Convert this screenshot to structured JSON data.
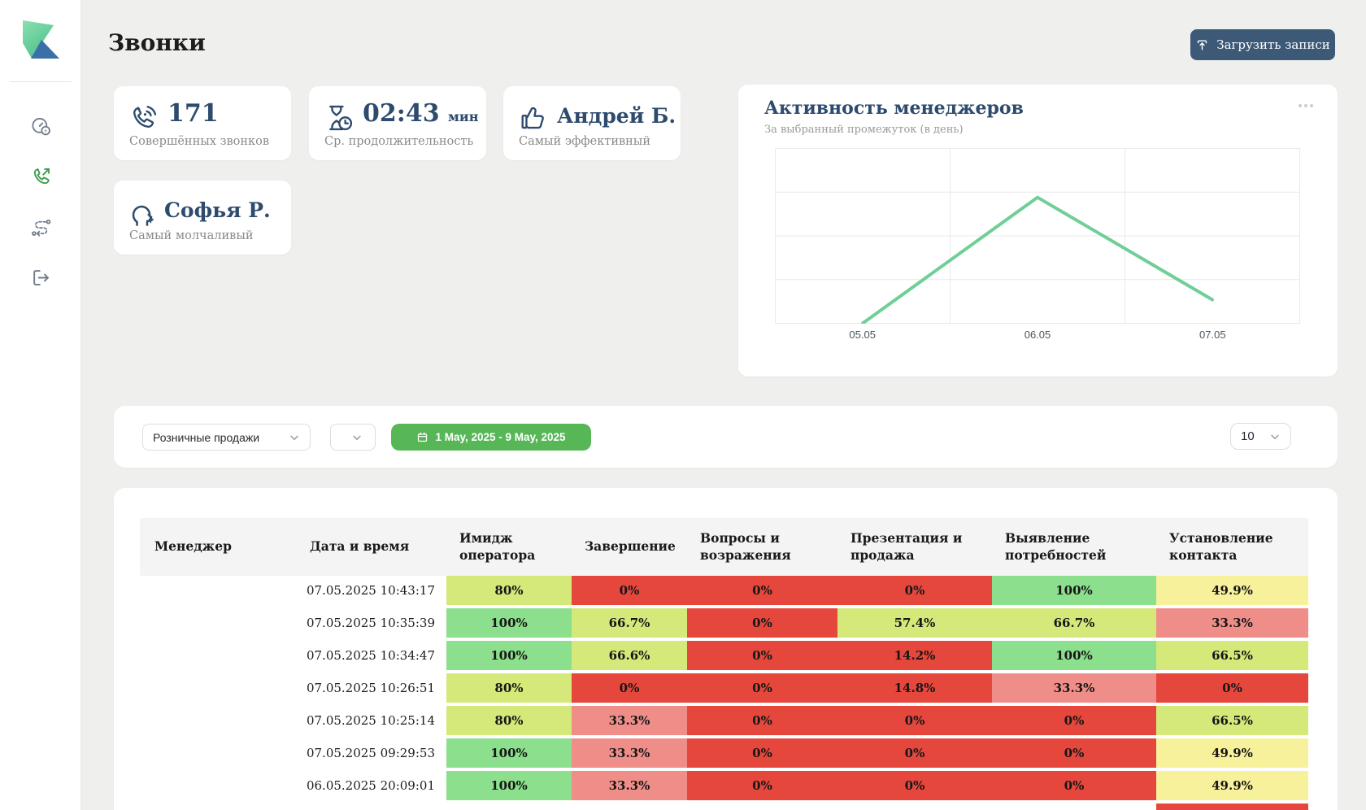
{
  "header": {
    "title": "Звонки",
    "upload_button": "Загрузить записи"
  },
  "sidebar": {
    "logo_icon": "logo",
    "items": [
      {
        "id": "dashboard",
        "icon": "gauge-icon",
        "active": false
      },
      {
        "id": "calls",
        "icon": "phone-outgoing-icon",
        "active": true
      },
      {
        "id": "script-flow",
        "icon": "route-icon",
        "active": false
      },
      {
        "id": "logout",
        "icon": "logout-icon",
        "active": false
      }
    ]
  },
  "stats": [
    {
      "icon": "phone-waves-icon",
      "value": "171",
      "unit": "",
      "label": "Совершённых звонков"
    },
    {
      "icon": "hourglass-clock-icon",
      "value": "02:43",
      "unit": "мин",
      "label": "Ср. продолжительность"
    },
    {
      "icon": "thumbs-up-icon",
      "value": "Андрей Б.",
      "unit": "",
      "label": "Самый эффективный"
    },
    {
      "icon": "talking-head-icon",
      "value": "Софья Р.",
      "unit": "",
      "label": "Самый молчаливый"
    }
  ],
  "activity_panel": {
    "title": "Активность менеджеров",
    "subtitle": "За выбранный промежуток (в день)",
    "menu_icon": "ellipsis-icon"
  },
  "chart_data": {
    "type": "line",
    "title": "Активность менеджеров",
    "categories": [
      "05.05",
      "06.05",
      "07.05"
    ],
    "values": [
      0,
      2.88,
      0.54
    ],
    "ylim": [
      0,
      4
    ],
    "grid": true,
    "legend": false,
    "line_color": "#6FCF97"
  },
  "filters": {
    "department": {
      "value": "Розничные продажи",
      "icon": "chevron-down-icon"
    },
    "secondary": {
      "value": "",
      "icon": "chevron-down-icon"
    },
    "date_range": {
      "label": "1 May, 2025 - 9 May, 2025",
      "icon": "calendar-icon",
      "color": "#57B757"
    },
    "page_size": {
      "value": "10",
      "icon": "chevron-down-icon"
    }
  },
  "table": {
    "columns": [
      "Менеджер",
      "Дата и время",
      "Имидж оператора",
      "Завершение",
      "Вопросы и возражения",
      "Презентация и продажа",
      "Выявление потребностей",
      "Установление контакта"
    ],
    "rows": [
      {
        "manager": "",
        "datetime": "07.05.2025 10:43:17",
        "values": [
          80,
          0,
          0,
          0,
          100,
          49.9
        ]
      },
      {
        "manager": "",
        "datetime": "07.05.2025 10:35:39",
        "values": [
          100,
          66.7,
          0,
          57.4,
          66.7,
          33.3
        ]
      },
      {
        "manager": "",
        "datetime": "07.05.2025 10:34:47",
        "values": [
          100,
          66.6,
          0,
          14.2,
          100,
          66.5
        ]
      },
      {
        "manager": "",
        "datetime": "07.05.2025 10:26:51",
        "values": [
          80,
          0,
          0,
          14.8,
          33.3,
          0
        ]
      },
      {
        "manager": "",
        "datetime": "07.05.2025 10:25:14",
        "values": [
          80,
          33.3,
          0,
          0,
          0,
          66.5
        ]
      },
      {
        "manager": "",
        "datetime": "07.05.2025 09:29:53",
        "values": [
          100,
          33.3,
          0,
          0,
          0,
          49.9
        ]
      },
      {
        "manager": "",
        "datetime": "06.05.2025 20:09:01",
        "values": [
          100,
          33.3,
          0,
          0,
          0,
          49.9
        ]
      }
    ],
    "partial_row": {
      "visible_columns": [
        7
      ],
      "color": "red"
    },
    "value_suffix": "%",
    "palette": {
      "green": "#8CDF8C",
      "yellowgreen": "#D5E87A",
      "yellow": "#F8F19B",
      "salmon": "#EF8D88",
      "red": "#E5473D"
    },
    "color_rules": [
      {
        "min": 100,
        "color": "green"
      },
      {
        "min": 57,
        "color": "yellowgreen"
      },
      {
        "min": 45,
        "color": "yellow"
      },
      {
        "min": 30,
        "color": "salmon"
      },
      {
        "min": 0,
        "color": "red"
      }
    ]
  },
  "colors": {
    "accent_blue": "#2E4B6E",
    "button_blue": "#3C5977",
    "chart_line": "#6FCF97",
    "date_button_green": "#57B757",
    "active_icon_green": "#3E9C4C"
  }
}
